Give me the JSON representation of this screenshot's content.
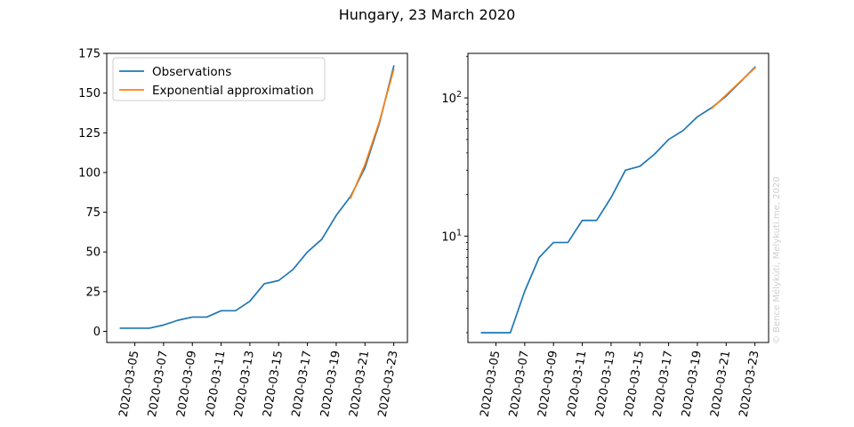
{
  "figure": {
    "title": "Hungary, 23 March 2020",
    "watermark": "© Bence Mélykúti, Melykuti.me, 2020"
  },
  "chart_data": [
    {
      "type": "line",
      "scale": "linear",
      "title": "",
      "xlabel": "",
      "ylabel": "",
      "ylim": [
        -7,
        175
      ],
      "yticks": [
        0,
        25,
        50,
        75,
        100,
        125,
        150,
        175
      ],
      "xticks": [
        "2020-03-05",
        "2020-03-07",
        "2020-03-09",
        "2020-03-11",
        "2020-03-13",
        "2020-03-15",
        "2020-03-17",
        "2020-03-19",
        "2020-03-21",
        "2020-03-23"
      ],
      "legend": {
        "placement": "top-left",
        "entries": [
          "Observations",
          "Exponential approximation"
        ]
      },
      "series": [
        {
          "name": "Observations",
          "color": "#1f77b4",
          "x": [
            "2020-03-04",
            "2020-03-05",
            "2020-03-06",
            "2020-03-07",
            "2020-03-08",
            "2020-03-09",
            "2020-03-10",
            "2020-03-11",
            "2020-03-12",
            "2020-03-13",
            "2020-03-14",
            "2020-03-15",
            "2020-03-16",
            "2020-03-17",
            "2020-03-18",
            "2020-03-19",
            "2020-03-20",
            "2020-03-21",
            "2020-03-22",
            "2020-03-23"
          ],
          "y": [
            2,
            2,
            2,
            4,
            7,
            9,
            9,
            13,
            13,
            19,
            30,
            32,
            39,
            50,
            58,
            73,
            85,
            103,
            131,
            167
          ]
        },
        {
          "name": "Exponential approximation",
          "color": "#ff7f0e",
          "x": [
            "2020-03-20",
            "2020-03-21",
            "2020-03-22",
            "2020-03-23"
          ],
          "y": [
            84,
            105,
            132,
            165
          ]
        }
      ]
    },
    {
      "type": "line",
      "scale": "log",
      "title": "",
      "xlabel": "",
      "ylabel": "",
      "ylim": [
        1.7,
        210
      ],
      "yticks": [
        10,
        100
      ],
      "ytick_labels": [
        {
          "base": "10",
          "exp": "1"
        },
        {
          "base": "10",
          "exp": "2"
        }
      ],
      "xticks": [
        "2020-03-05",
        "2020-03-07",
        "2020-03-09",
        "2020-03-11",
        "2020-03-13",
        "2020-03-15",
        "2020-03-17",
        "2020-03-19",
        "2020-03-21",
        "2020-03-23"
      ],
      "series": [
        {
          "color": "#1f77b4",
          "x": [
            "2020-03-04",
            "2020-03-05",
            "2020-03-06",
            "2020-03-07",
            "2020-03-08",
            "2020-03-09",
            "2020-03-10",
            "2020-03-11",
            "2020-03-12",
            "2020-03-13",
            "2020-03-14",
            "2020-03-15",
            "2020-03-16",
            "2020-03-17",
            "2020-03-18",
            "2020-03-19",
            "2020-03-20",
            "2020-03-21",
            "2020-03-22",
            "2020-03-23"
          ],
          "y": [
            2,
            2,
            2,
            4,
            7,
            9,
            9,
            13,
            13,
            19,
            30,
            32,
            39,
            50,
            58,
            73,
            85,
            103,
            131,
            167
          ]
        },
        {
          "color": "#ff7f0e",
          "x": [
            "2020-03-20",
            "2020-03-21",
            "2020-03-22",
            "2020-03-23"
          ],
          "y": [
            84,
            105,
            132,
            165
          ]
        }
      ]
    }
  ]
}
